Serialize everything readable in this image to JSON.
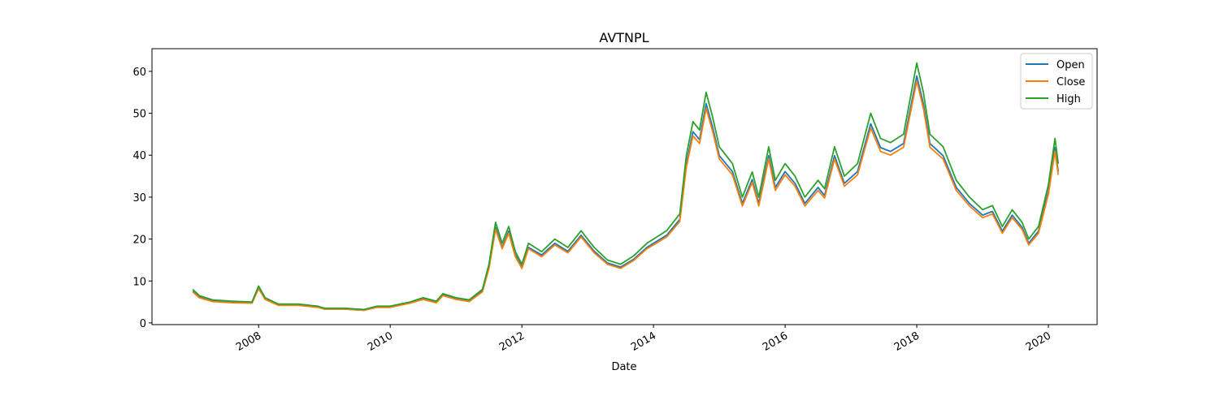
{
  "chart_data": {
    "type": "line",
    "title": "AVTNPL",
    "x_label": "Date",
    "x": [
      2007.0,
      2007.1,
      2007.3,
      2007.6,
      2007.9,
      2008.0,
      2008.1,
      2008.3,
      2008.6,
      2008.9,
      2009.0,
      2009.3,
      2009.6,
      2009.8,
      2010.0,
      2010.3,
      2010.5,
      2010.7,
      2010.8,
      2011.0,
      2011.2,
      2011.4,
      2011.5,
      2011.6,
      2011.7,
      2011.8,
      2011.9,
      2012.0,
      2012.1,
      2012.3,
      2012.5,
      2012.7,
      2012.9,
      2013.1,
      2013.3,
      2013.5,
      2013.7,
      2013.9,
      2014.0,
      2014.2,
      2014.4,
      2014.5,
      2014.6,
      2014.7,
      2014.8,
      2014.9,
      2015.0,
      2015.2,
      2015.35,
      2015.5,
      2015.6,
      2015.75,
      2015.85,
      2016.0,
      2016.15,
      2016.3,
      2016.5,
      2016.6,
      2016.75,
      2016.9,
      2017.1,
      2017.3,
      2017.45,
      2017.6,
      2017.8,
      2018.0,
      2018.1,
      2018.2,
      2018.4,
      2018.6,
      2018.8,
      2019.0,
      2019.15,
      2019.3,
      2019.45,
      2019.6,
      2019.7,
      2019.85,
      2020.0,
      2020.1,
      2020.15
    ],
    "series": [
      {
        "name": "Open",
        "color": "#1f77b4",
        "values": [
          7.6,
          6.2,
          5.2,
          4.9,
          4.8,
          8.4,
          5.7,
          4.3,
          4.3,
          3.8,
          3.3,
          3.3,
          3.0,
          3.8,
          3.8,
          4.8,
          5.7,
          4.9,
          6.7,
          5.7,
          5.2,
          7.6,
          13.3,
          22.8,
          18,
          21.9,
          16.2,
          13.3,
          18,
          16.2,
          19,
          17.1,
          20.9,
          17.1,
          14.3,
          13.3,
          15.2,
          18,
          19,
          20.9,
          24.7,
          38,
          45.6,
          43.7,
          52.3,
          46.6,
          39.9,
          36.1,
          28.5,
          34.2,
          28.5,
          39.9,
          32.3,
          36.1,
          33.3,
          28.5,
          32.3,
          30.4,
          39.9,
          33.3,
          36.1,
          47.5,
          41.8,
          40.9,
          42.8,
          58.9,
          52.3,
          42.8,
          39.9,
          32.3,
          28.5,
          25.7,
          26.6,
          21.9,
          25.7,
          22.8,
          19,
          21.9,
          31.4,
          41.8,
          36.1
        ]
      },
      {
        "name": "Close",
        "color": "#ff7f0e",
        "values": [
          7.4,
          6.0,
          5.1,
          4.8,
          4.7,
          8.2,
          5.6,
          4.2,
          4.2,
          3.7,
          3.3,
          3.3,
          3.0,
          3.7,
          3.7,
          4.7,
          5.6,
          4.8,
          6.5,
          5.6,
          5.1,
          7.4,
          13,
          22.3,
          17.7,
          21.4,
          15.8,
          13,
          17.7,
          15.8,
          18.6,
          16.7,
          20.5,
          16.7,
          14,
          13,
          14.9,
          17.7,
          18.6,
          20.5,
          24.2,
          37.2,
          44.6,
          42.8,
          51.2,
          45.6,
          39.1,
          35.3,
          27.9,
          33.5,
          27.9,
          39.1,
          31.6,
          35.3,
          32.6,
          27.9,
          31.6,
          29.8,
          39.1,
          32.6,
          35.3,
          46.5,
          40.9,
          40,
          41.9,
          57.7,
          51.2,
          41.9,
          39.1,
          31.6,
          27.9,
          25.1,
          26,
          21.4,
          25.1,
          22.3,
          18.6,
          21.4,
          30.7,
          40.9,
          35.3
        ]
      },
      {
        "name": "High",
        "color": "#2ca02c",
        "values": [
          8,
          6.5,
          5.5,
          5.2,
          5,
          8.8,
          6,
          4.5,
          4.5,
          4,
          3.5,
          3.5,
          3.2,
          4,
          4,
          5,
          6,
          5.2,
          7,
          6,
          5.5,
          8,
          14,
          24,
          19,
          23,
          17,
          14,
          19,
          17,
          20,
          18,
          22,
          18,
          15,
          14,
          16,
          19,
          20,
          22,
          26,
          40,
          48,
          46,
          55,
          49,
          42,
          38,
          30,
          36,
          30,
          42,
          34,
          38,
          35,
          30,
          34,
          32,
          42,
          35,
          38,
          50,
          44,
          43,
          45,
          62,
          55,
          45,
          42,
          34,
          30,
          27,
          28,
          23,
          27,
          24,
          20,
          23,
          33,
          44,
          38
        ]
      }
    ],
    "xlim": [
      2006.38,
      2020.74
    ],
    "xticks": [
      2008,
      2010,
      2012,
      2014,
      2016,
      2018,
      2020
    ],
    "ylim": [
      -0.4,
      65.4
    ],
    "yticks": [
      0,
      10,
      20,
      30,
      40,
      50,
      60
    ],
    "legend": "upper right"
  }
}
